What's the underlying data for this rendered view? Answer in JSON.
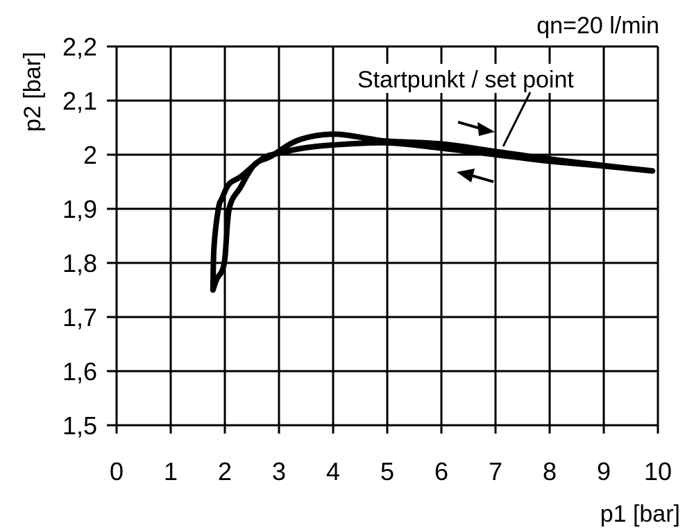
{
  "chart_data": {
    "type": "line",
    "title": "",
    "annotations": {
      "flow": "qn=20 l/min",
      "set_point": "Startpunkt / set point"
    },
    "xlabel": "p1 [bar]",
    "ylabel": "p2 [bar]",
    "xlim": [
      0,
      10
    ],
    "ylim": [
      1.5,
      2.2
    ],
    "grid": true,
    "x_ticks": [
      "0",
      "1",
      "2",
      "3",
      "4",
      "5",
      "6",
      "7",
      "8",
      "9",
      "10"
    ],
    "y_ticks": [
      "1,5",
      "1,6",
      "1,7",
      "1,8",
      "1,9",
      "2",
      "2,1",
      "2,2"
    ],
    "series": [
      {
        "direction": "increasing p1",
        "x": [
          1.78,
          1.85,
          1.99,
          2.08,
          2.29,
          2.55,
          2.85,
          3.36,
          4.0,
          4.64,
          5.0,
          6.0,
          7.0,
          8.0,
          9.0,
          9.9
        ],
        "y": [
          1.75,
          1.77,
          1.8,
          1.9,
          1.94,
          1.982,
          1.997,
          2.027,
          2.038,
          2.03,
          2.025,
          2.02,
          2.006,
          1.992,
          1.98,
          1.97
        ]
      },
      {
        "direction": "decreasing p1",
        "x": [
          9.9,
          9.0,
          8.0,
          7.0,
          6.0,
          5.0,
          4.0,
          3.5,
          3.0,
          2.7,
          2.3,
          2.08,
          1.95,
          1.88,
          1.8,
          1.78
        ],
        "y": [
          1.97,
          1.979,
          1.988,
          2.0,
          2.012,
          2.022,
          2.018,
          2.013,
          2.003,
          1.993,
          1.96,
          1.946,
          1.92,
          1.9,
          1.83,
          1.75
        ]
      }
    ]
  }
}
